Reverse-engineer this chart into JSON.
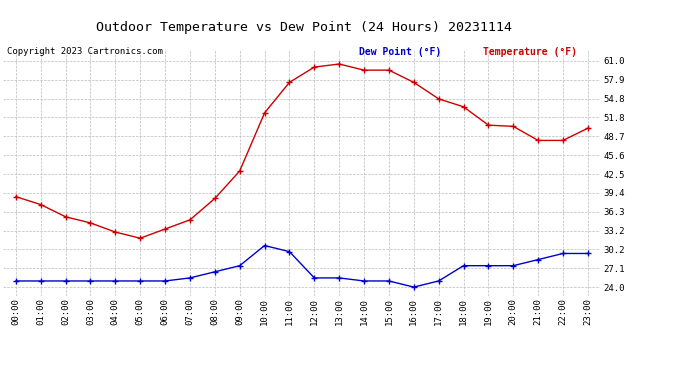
{
  "title": "Outdoor Temperature vs Dew Point (24 Hours) 20231114",
  "copyright": "Copyright 2023 Cartronics.com",
  "hours": [
    "00:00",
    "01:00",
    "02:00",
    "03:00",
    "04:00",
    "05:00",
    "06:00",
    "07:00",
    "08:00",
    "09:00",
    "10:00",
    "11:00",
    "12:00",
    "13:00",
    "14:00",
    "15:00",
    "16:00",
    "17:00",
    "18:00",
    "19:00",
    "20:00",
    "21:00",
    "22:00",
    "23:00"
  ],
  "temperature": [
    38.8,
    37.5,
    35.5,
    34.5,
    33.0,
    32.0,
    33.5,
    35.0,
    38.5,
    43.0,
    52.5,
    57.5,
    60.0,
    60.5,
    59.5,
    59.5,
    57.5,
    54.8,
    53.5,
    50.5,
    50.3,
    48.0,
    48.0,
    50.0
  ],
  "dew_point": [
    25.0,
    25.0,
    25.0,
    25.0,
    25.0,
    25.0,
    25.0,
    25.5,
    26.5,
    27.5,
    30.8,
    29.8,
    25.5,
    25.5,
    25.0,
    25.0,
    24.0,
    25.0,
    27.5,
    27.5,
    27.5,
    28.5,
    29.5,
    29.5
  ],
  "temp_color": "#cc0000",
  "dew_color": "#0000cc",
  "yticks": [
    24.0,
    27.1,
    30.2,
    33.2,
    36.3,
    39.4,
    42.5,
    45.6,
    48.7,
    51.8,
    54.8,
    57.9,
    61.0
  ],
  "ylim": [
    22.5,
    63.0
  ],
  "bg_color": "#ffffff",
  "grid_color": "#bbbbbb",
  "legend_dew_label": "Dew Point (°F)",
  "legend_temp_label": "Temperature (°F)"
}
